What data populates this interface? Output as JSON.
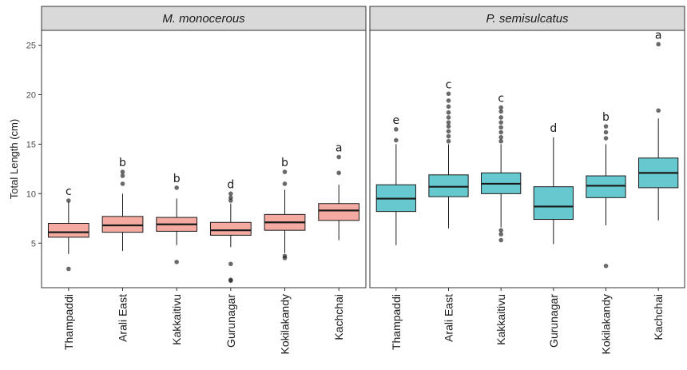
{
  "chart_data": {
    "type": "boxplot",
    "ylabel": "Total Length (cm)",
    "ylim": [
      0.5,
      26.5
    ],
    "yticks": [
      5,
      10,
      15,
      20,
      25
    ],
    "categories": [
      "Thampaddi",
      "Arali East",
      "Kakkaitivu",
      "Gurunagar",
      "Kokilakandy",
      "Kachchai"
    ],
    "panels": [
      {
        "title": "M. monocerous",
        "fill": "#f4a9a1",
        "boxes": [
          {
            "category": "Thampaddi",
            "whisker_low": 3.9,
            "q1": 5.6,
            "median": 6.1,
            "q3": 7.0,
            "whisker_high": 9.2,
            "outliers": [
              2.4,
              9.3
            ],
            "letter": "c"
          },
          {
            "category": "Arali East",
            "whisker_low": 4.2,
            "q1": 6.1,
            "median": 6.8,
            "q3": 7.7,
            "whisker_high": 10.0,
            "outliers": [
              11.0,
              11.8,
              12.2
            ],
            "letter": "b"
          },
          {
            "category": "Kakkaitivu",
            "whisker_low": 4.8,
            "q1": 6.2,
            "median": 6.9,
            "q3": 7.6,
            "whisker_high": 9.5,
            "outliers": [
              3.1,
              10.6
            ],
            "letter": "b"
          },
          {
            "category": "Gurunagar",
            "whisker_low": 4.6,
            "q1": 5.8,
            "median": 6.3,
            "q3": 7.1,
            "whisker_high": 9.0,
            "outliers": [
              1.2,
              1.3,
              2.9,
              9.3,
              9.6,
              10.0
            ],
            "letter": "d"
          },
          {
            "category": "Kokilakandy",
            "whisker_low": 4.0,
            "q1": 6.3,
            "median": 7.1,
            "q3": 7.9,
            "whisker_high": 10.4,
            "outliers": [
              3.5,
              3.7,
              11.0,
              12.2
            ],
            "letter": "b"
          },
          {
            "category": "Kachchai",
            "whisker_low": 5.3,
            "q1": 7.3,
            "median": 8.3,
            "q3": 9.0,
            "whisker_high": 10.9,
            "outliers": [
              12.1,
              13.7
            ],
            "letter": "a"
          }
        ]
      },
      {
        "title": "P. semisulcatus",
        "fill": "#66c9cf",
        "boxes": [
          {
            "category": "Thampaddi",
            "whisker_low": 4.8,
            "q1": 8.2,
            "median": 9.5,
            "q3": 10.9,
            "whisker_high": 15.0,
            "outliers": [
              15.4,
              16.5
            ],
            "letter": "e"
          },
          {
            "category": "Arali East",
            "whisker_low": 6.5,
            "q1": 9.7,
            "median": 10.7,
            "q3": 11.9,
            "whisker_high": 15.0,
            "outliers": [
              15.3,
              15.8,
              16.3,
              16.8,
              17.2,
              17.7,
              18.2,
              18.8,
              19.4,
              20.1
            ],
            "letter": "c"
          },
          {
            "category": "Kakkaitivu",
            "whisker_low": 6.6,
            "q1": 10.0,
            "median": 11.0,
            "q3": 12.1,
            "whisker_high": 15.0,
            "outliers": [
              5.3,
              5.9,
              6.3,
              15.3,
              15.7,
              16.2,
              16.7,
              17.2,
              17.7,
              18.3,
              18.7
            ],
            "letter": "c"
          },
          {
            "category": "Gurunagar",
            "whisker_low": 4.9,
            "q1": 7.4,
            "median": 8.7,
            "q3": 10.7,
            "whisker_high": 15.7,
            "outliers": [],
            "letter": "d"
          },
          {
            "category": "Kokilakandy",
            "whisker_low": 6.8,
            "q1": 9.6,
            "median": 10.8,
            "q3": 11.8,
            "whisker_high": 15.0,
            "outliers": [
              2.7,
              15.6,
              16.2,
              16.8
            ],
            "letter": "b"
          },
          {
            "category": "Kachchai",
            "whisker_low": 7.3,
            "q1": 10.6,
            "median": 12.1,
            "q3": 13.6,
            "whisker_high": 17.6,
            "outliers": [
              18.4,
              25.1
            ],
            "letter": "a"
          }
        ]
      }
    ]
  }
}
